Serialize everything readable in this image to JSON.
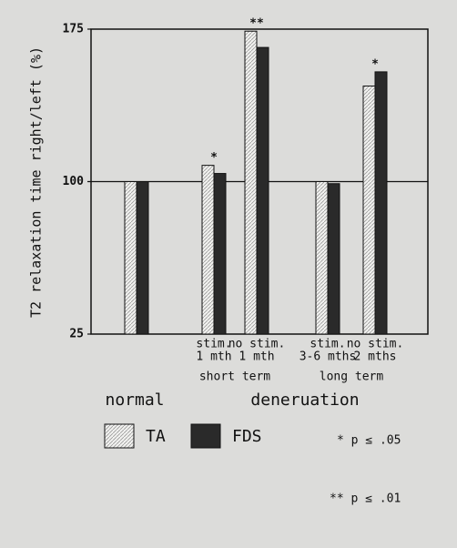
{
  "chart_data": {
    "type": "bar",
    "y_label": "T2 relaxation time right/left (%)",
    "categories": [
      null,
      [
        "stim.",
        "1 mth"
      ],
      [
        "no stim.",
        "1 mth"
      ],
      [
        "stim.",
        "3-6 mths"
      ],
      [
        "no stim.",
        "2 mths"
      ]
    ],
    "series": [
      {
        "name": "TA",
        "color": "#f2f2f0",
        "values": [
          100,
          108,
          174,
          100,
          147
        ]
      },
      {
        "name": "FDS",
        "color": "#2a2a2a",
        "values": [
          100,
          104,
          166,
          99,
          154
        ]
      }
    ],
    "annotations": [
      null,
      "*",
      "**",
      null,
      "*"
    ],
    "groups": [
      "short term",
      "long term"
    ],
    "major_groups": [
      "normal",
      "deneruation"
    ],
    "significance": [
      "* p ≤ .05",
      "** p ≤ .01"
    ],
    "ylim": [
      25,
      175
    ],
    "yticks": [
      25,
      100,
      175
    ]
  }
}
